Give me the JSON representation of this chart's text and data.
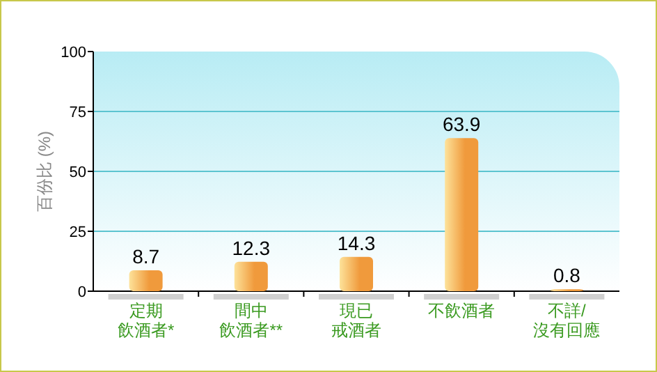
{
  "chart_data": {
    "type": "bar",
    "ylabel": "百份比 (%)",
    "categories": [
      "定期飲酒者*",
      "間中飲酒者**",
      "現已戒酒者",
      "不飲酒者",
      "不詳/沒有回應"
    ],
    "values": [
      8.7,
      12.3,
      14.3,
      63.9,
      0.8
    ],
    "color": "#f09a3c",
    "ylim": [
      0,
      100
    ],
    "yticks": [
      0,
      25,
      50,
      75,
      100
    ],
    "grid": "y",
    "data_labels": true
  }
}
